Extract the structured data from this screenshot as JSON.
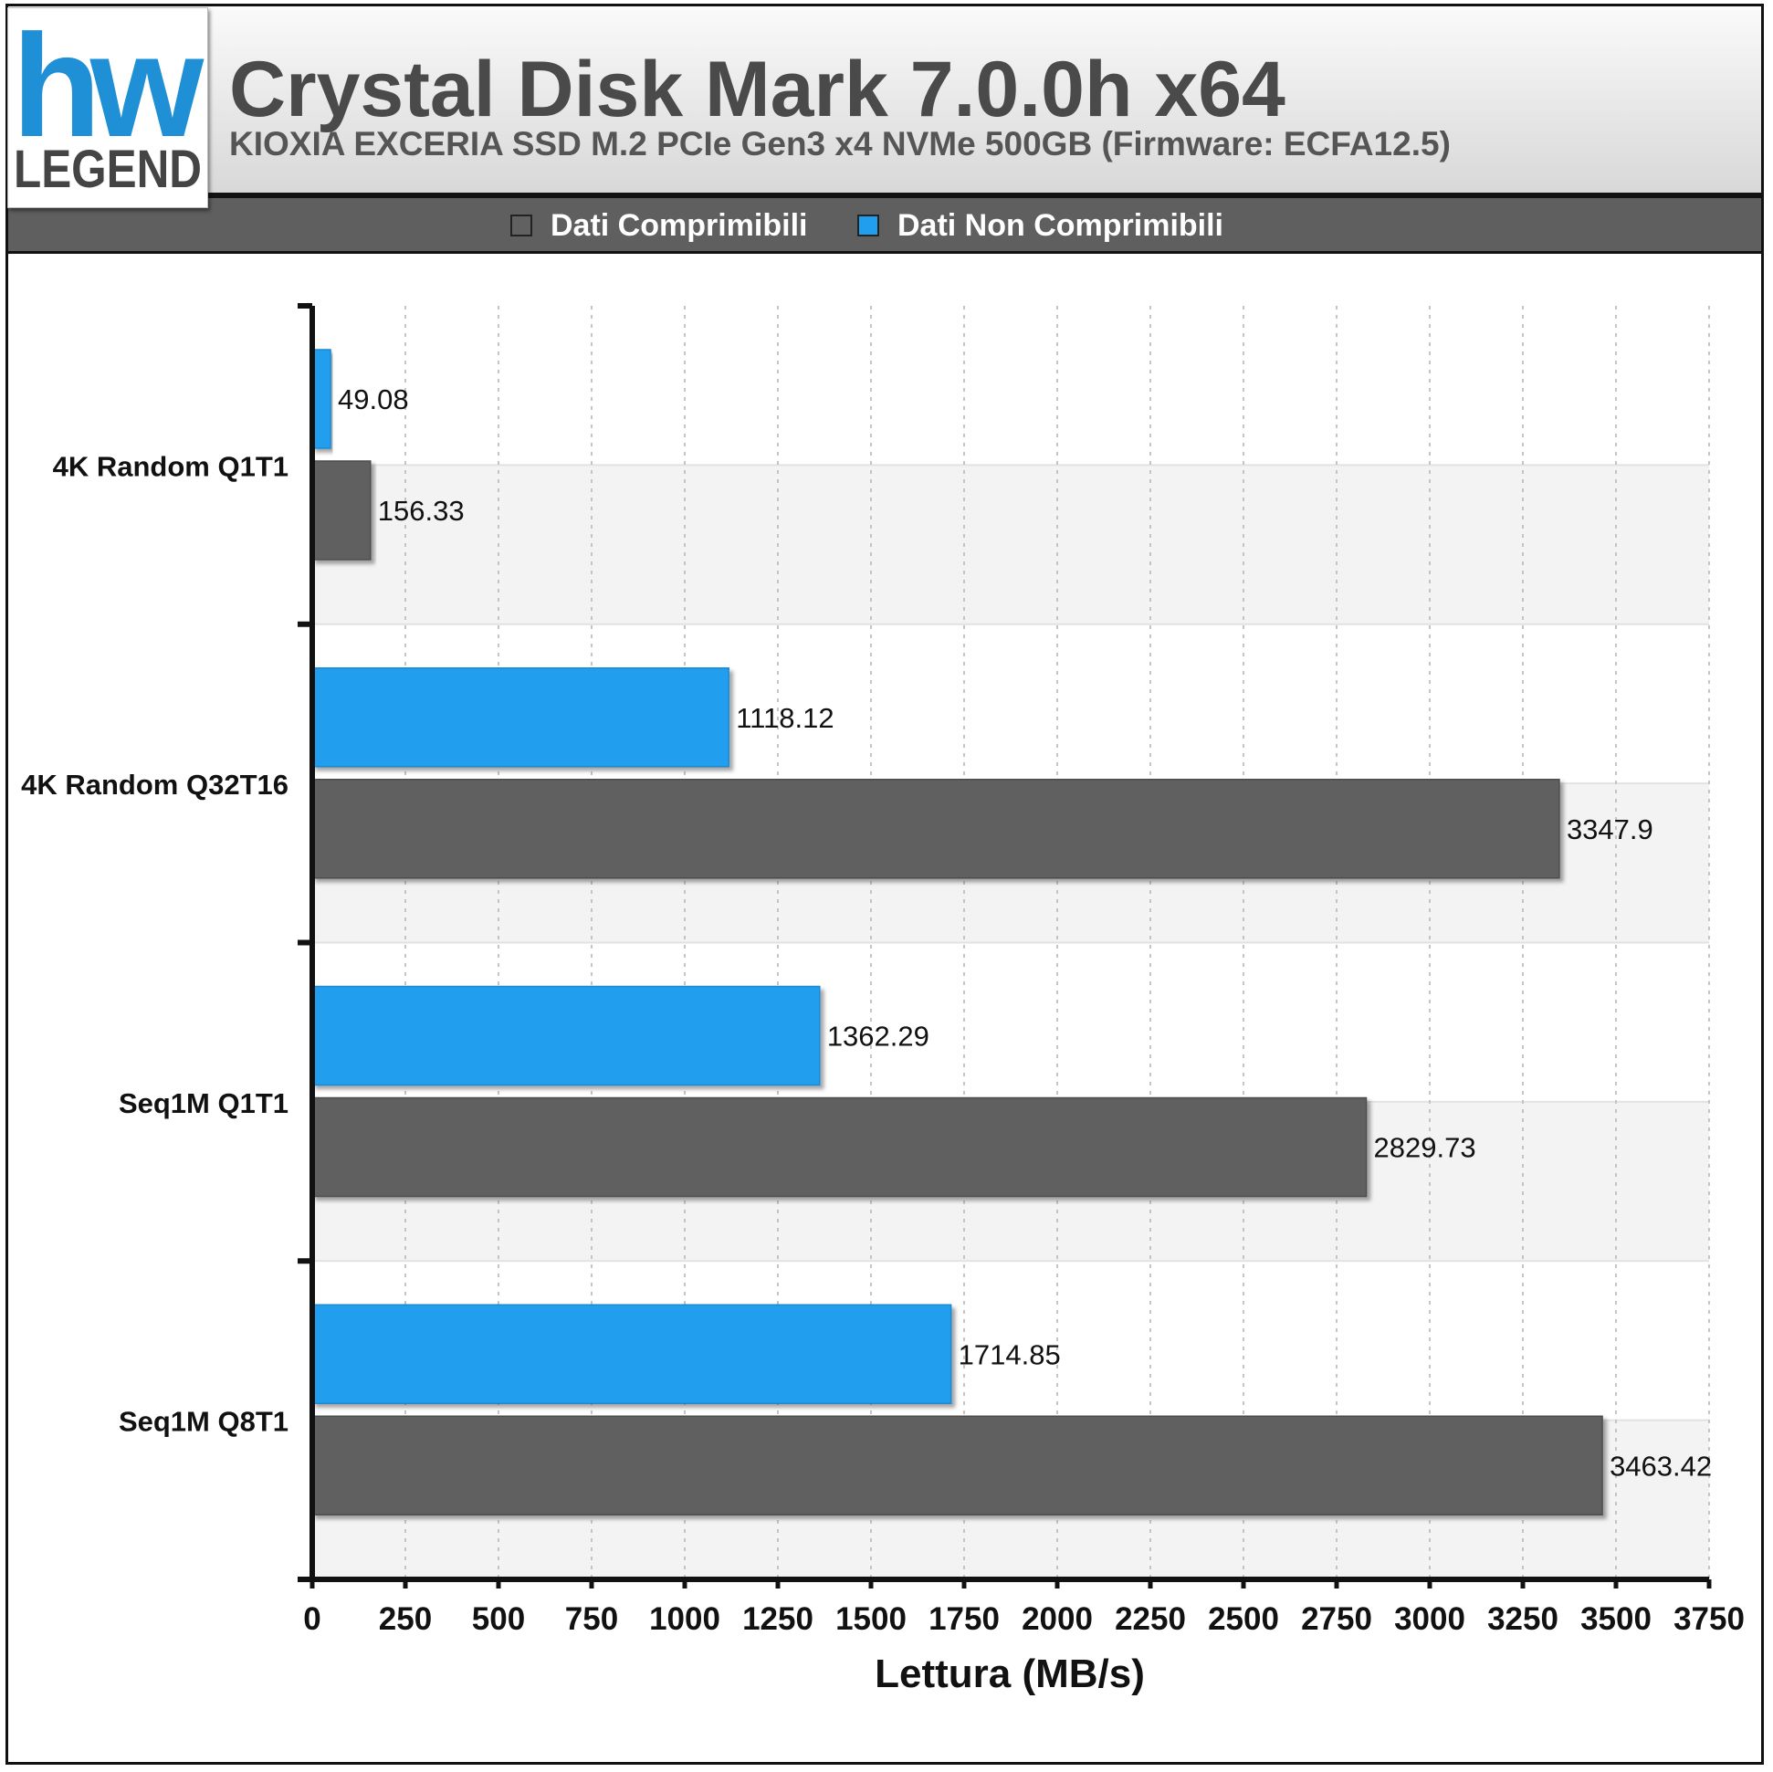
{
  "header": {
    "title": "Crystal Disk Mark 7.0.0h x64",
    "subtitle": "KIOXIA EXCERIA SSD M.2 PCIe Gen3 x4 NVMe 500GB (Firmware: ECFA12.5)",
    "logo_text_top": "hw",
    "logo_text_bottom": "LEGEND"
  },
  "legend": {
    "items": [
      {
        "label": "Dati Comprimibili",
        "color": "#616161"
      },
      {
        "label": "Dati Non Comprimibili",
        "color": "#219eee"
      }
    ]
  },
  "chart_data": {
    "type": "bar",
    "orientation": "horizontal",
    "categories": [
      "4K Random Q1T1",
      "4K Random Q32T16",
      "Seq1M Q1T1",
      "Seq1M Q8T1"
    ],
    "series": [
      {
        "name": "Dati Non Comprimibili",
        "color": "#219eee",
        "values": [
          49.08,
          1118.12,
          1362.29,
          1714.85
        ]
      },
      {
        "name": "Dati Comprimibili",
        "color": "#616161",
        "values": [
          156.33,
          3347.9,
          2829.73,
          3463.42
        ]
      }
    ],
    "value_labels": {
      "Dati Non Comprimibili": [
        "49.08",
        "1118.12",
        "1362.29",
        "1714.85"
      ],
      "Dati Comprimibili": [
        "156.33",
        "3347.9",
        "2829.73",
        "3463.42"
      ]
    },
    "xlabel": "Lettura (MB/s)",
    "ylabel": "",
    "xlim": [
      0,
      3750
    ],
    "xticks": [
      "0",
      "250",
      "500",
      "750",
      "1000",
      "1250",
      "1500",
      "1750",
      "2000",
      "2250",
      "2500",
      "2750",
      "3000",
      "3250",
      "3500",
      "3750"
    ],
    "grid": "vertical",
    "legend_position": "top"
  }
}
